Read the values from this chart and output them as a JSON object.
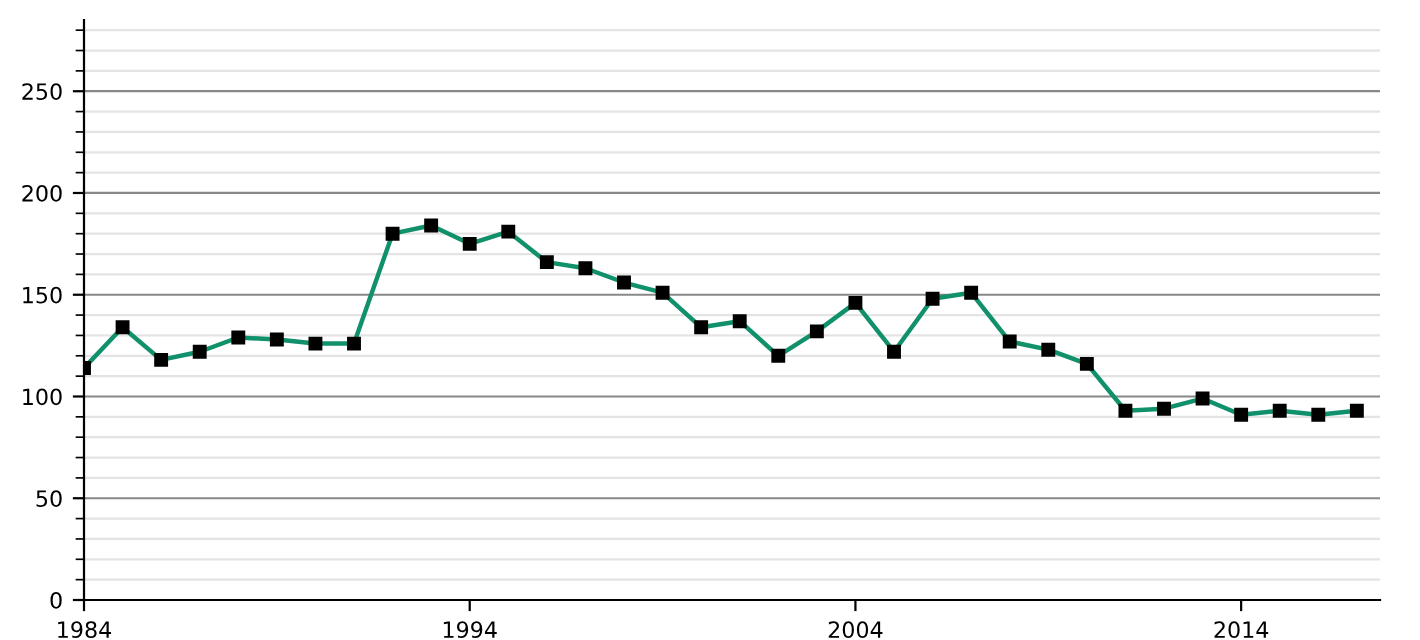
{
  "chart_data": {
    "type": "line",
    "x": [
      1984,
      1985,
      1986,
      1987,
      1988,
      1989,
      1990,
      1991,
      1992,
      1993,
      1994,
      1995,
      1996,
      1997,
      1998,
      1999,
      2000,
      2001,
      2002,
      2003,
      2004,
      2005,
      2006,
      2007,
      2008,
      2009,
      2010,
      2011,
      2012,
      2013,
      2014,
      2015,
      2016,
      2017
    ],
    "series": [
      {
        "color": "#11906c",
        "values": [
          114,
          134,
          118,
          122,
          129,
          128,
          126,
          126,
          180,
          184,
          175,
          181,
          166,
          163,
          156,
          151,
          134,
          137,
          120,
          132,
          146,
          122,
          148,
          151,
          127,
          123,
          116,
          93,
          94,
          99,
          91,
          93,
          91,
          93
        ]
      }
    ],
    "xlim": [
      1984,
      2017.6
    ],
    "xticks": [
      1984,
      1994,
      2004,
      2014
    ],
    "ylim": [
      0,
      285
    ],
    "yticks": [
      0,
      50,
      100,
      150,
      200,
      250
    ],
    "grid": "y",
    "marker": "square",
    "line_style": "solid"
  }
}
